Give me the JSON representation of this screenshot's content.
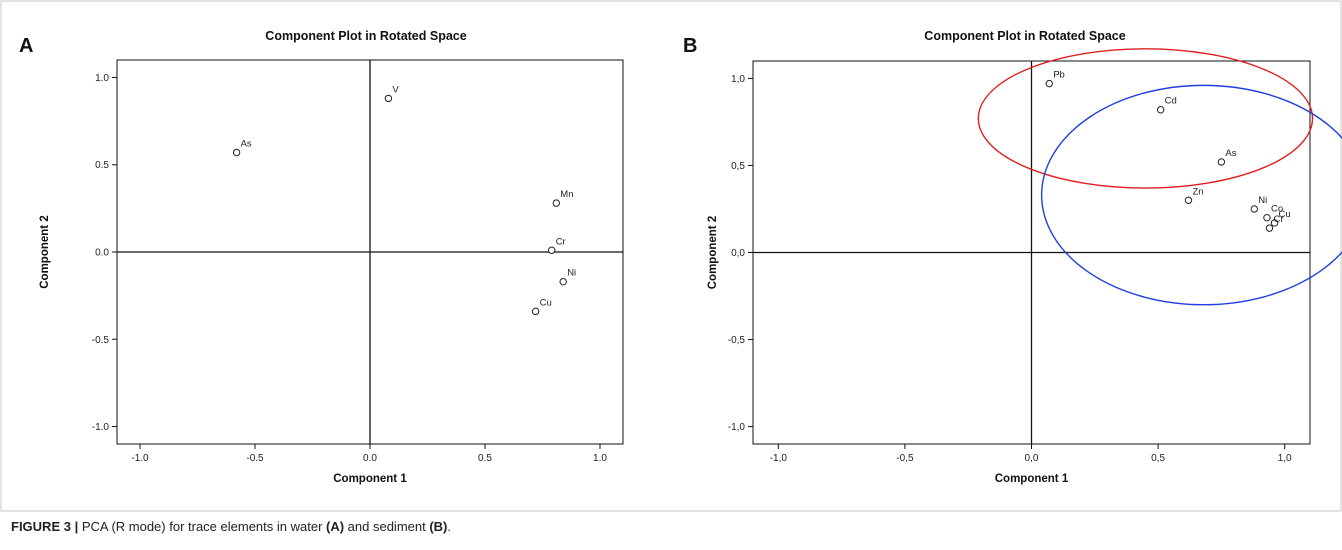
{
  "caption": {
    "label": "FIGURE 3 |",
    "text_1": " PCA (R mode) for trace elements in water ",
    "tag_a": "(A)",
    "text_2": " and sediment ",
    "tag_b": "(B)",
    "text_3": "."
  },
  "chart_data": [
    {
      "type": "scatter",
      "panel_label": "A",
      "title": "Component Plot in Rotated Space",
      "xlabel": "Component 1",
      "ylabel": "Component 2",
      "xlim": [
        -1.1,
        1.1
      ],
      "ylim": [
        -1.1,
        1.1
      ],
      "xticks": [
        -1.0,
        -0.5,
        0.0,
        0.5,
        1.0
      ],
      "yticks": [
        -1.0,
        -0.5,
        0.0,
        0.5,
        1.0
      ],
      "xtick_labels": [
        "-1.0",
        "-0.5",
        "0.0",
        "0.5",
        "1.0"
      ],
      "ytick_labels": [
        "-1.0",
        "-0.5",
        "0.0",
        "0.5",
        "1.0"
      ],
      "reference_lines": {
        "x": 0,
        "y": 0
      },
      "points": [
        {
          "label": "V",
          "x": 0.08,
          "y": 0.88
        },
        {
          "label": "As",
          "x": -0.58,
          "y": 0.57
        },
        {
          "label": "Mn",
          "x": 0.81,
          "y": 0.28
        },
        {
          "label": "Cr",
          "x": 0.79,
          "y": 0.01
        },
        {
          "label": "Ni",
          "x": 0.84,
          "y": -0.17
        },
        {
          "label": "Cu",
          "x": 0.72,
          "y": -0.34
        }
      ],
      "ellipses": []
    },
    {
      "type": "scatter",
      "panel_label": "B",
      "title": "Component Plot in Rotated Space",
      "xlabel": "Component 1",
      "ylabel": "Component 2",
      "xlim": [
        -1.1,
        1.1
      ],
      "ylim": [
        -1.1,
        1.1
      ],
      "xticks": [
        -1.0,
        -0.5,
        0.0,
        0.5,
        1.0
      ],
      "yticks": [
        -1.0,
        -0.5,
        0.0,
        0.5,
        1.0
      ],
      "xtick_labels": [
        "-1,0",
        "-0,5",
        "0,0",
        "0,5",
        "1,0"
      ],
      "ytick_labels": [
        "-1,0",
        "-0,5",
        "0,0",
        "0,5",
        "1,0"
      ],
      "reference_lines": {
        "x": 0,
        "y": 0
      },
      "points": [
        {
          "label": "Pb",
          "x": 0.07,
          "y": 0.97
        },
        {
          "label": "Cd",
          "x": 0.51,
          "y": 0.82
        },
        {
          "label": "As",
          "x": 0.75,
          "y": 0.52
        },
        {
          "label": "Zn",
          "x": 0.62,
          "y": 0.3
        },
        {
          "label": "Ni",
          "x": 0.88,
          "y": 0.25
        },
        {
          "label": "Co",
          "x": 0.93,
          "y": 0.2
        },
        {
          "label": "Cu",
          "x": 0.96,
          "y": 0.17
        },
        {
          "label": "Cr",
          "x": 0.94,
          "y": 0.14
        }
      ],
      "ellipses": [
        {
          "color": "#e02020",
          "cx": 0.45,
          "cy": 0.77,
          "rx": 0.66,
          "ry": 0.4
        },
        {
          "color": "#1f3fe0",
          "cx": 0.68,
          "cy": 0.33,
          "rx": 0.64,
          "ry": 0.63
        }
      ]
    }
  ]
}
